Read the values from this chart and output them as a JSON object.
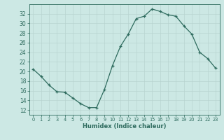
{
  "x": [
    0,
    1,
    2,
    3,
    4,
    5,
    6,
    7,
    8,
    9,
    10,
    11,
    12,
    13,
    14,
    15,
    16,
    17,
    18,
    19,
    20,
    21,
    22,
    23
  ],
  "y": [
    20.5,
    19.0,
    17.2,
    15.8,
    15.7,
    14.5,
    13.3,
    12.5,
    12.5,
    16.3,
    21.2,
    25.2,
    27.8,
    31.0,
    31.5,
    33.0,
    32.5,
    31.8,
    31.5,
    29.5,
    27.8,
    24.0,
    22.7,
    20.7
  ],
  "line_color": "#2e6b5e",
  "marker": "+",
  "marker_size": 3,
  "linewidth": 0.9,
  "xlabel": "Humidex (Indice chaleur)",
  "xlabel_fontsize": 6.0,
  "xlim": [
    -0.5,
    23.5
  ],
  "ylim": [
    11,
    34
  ],
  "yticks": [
    12,
    14,
    16,
    18,
    20,
    22,
    24,
    26,
    28,
    30,
    32
  ],
  "xticks": [
    0,
    1,
    2,
    3,
    4,
    5,
    6,
    7,
    8,
    9,
    10,
    11,
    12,
    13,
    14,
    15,
    16,
    17,
    18,
    19,
    20,
    21,
    22,
    23
  ],
  "grid_color": "#b8d4d0",
  "background_color": "#cce8e4",
  "ytick_fontsize": 5.5,
  "xtick_fontsize": 4.8,
  "tick_color": "#2e6b5e",
  "spine_color": "#2e6b5e",
  "xlabel_color": "#2e6b5e"
}
